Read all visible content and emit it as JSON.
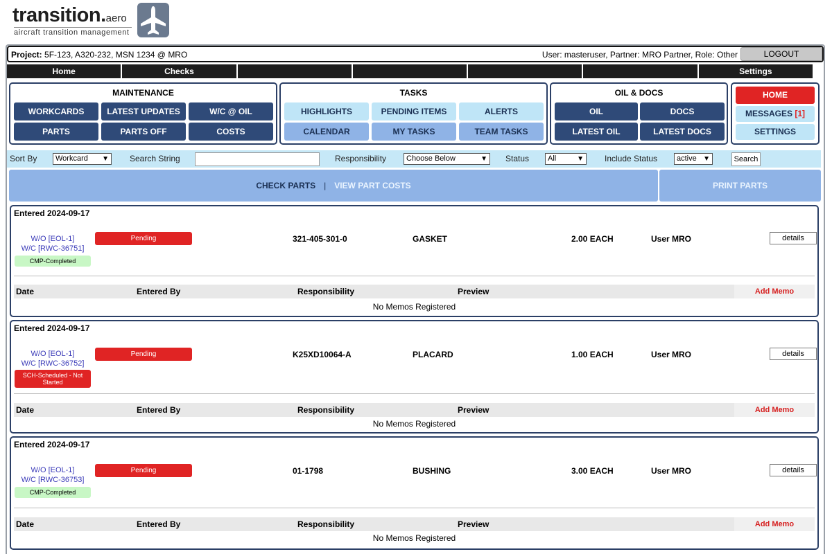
{
  "logo": {
    "word": "transition.",
    "suffix": "aero",
    "tagline": "aircraft transition management",
    "icon": "airplane-icon"
  },
  "infobar": {
    "project_label": "Project:",
    "project_value": "5F-123, A320-232, MSN 1234 @ MRO",
    "user_text": "User: masteruser, Partner: MRO Partner, Role: Other",
    "logout_label": "LOGOUT"
  },
  "nav": {
    "items": [
      "Home",
      "Checks",
      "",
      "",
      "",
      "",
      "Settings"
    ]
  },
  "maintenance": {
    "title": "MAINTENANCE",
    "buttons": [
      "WORKCARDS",
      "LATEST UPDATES",
      "W/C @ OIL",
      "PARTS",
      "PARTS OFF",
      "COSTS"
    ]
  },
  "tasks": {
    "title": "TASKS",
    "buttons": [
      "HIGHLIGHTS",
      "PENDING ITEMS",
      "ALERTS",
      "CALENDAR",
      "MY TASKS",
      "TEAM TASKS"
    ]
  },
  "oil_docs": {
    "title": "OIL & DOCS",
    "buttons": [
      "OIL",
      "DOCS",
      "LATEST OIL",
      "LATEST DOCS"
    ]
  },
  "side": {
    "home_label": "HOME",
    "messages_label": "MESSAGES",
    "messages_count": "[1]",
    "settings_label": "SETTINGS"
  },
  "filters": {
    "sort_by_label": "Sort By",
    "sort_by_value": "Workcard",
    "search_label": "Search String",
    "search_value": "",
    "responsibility_label": "Responsibility",
    "responsibility_value": "Choose Below",
    "status_label": "Status",
    "status_value": "All",
    "include_status_label": "Include Status",
    "include_status_value": "active",
    "search_button": "Search"
  },
  "tabs": {
    "active": "CHECK PARTS",
    "separator": "|",
    "link": "VIEW PART COSTS",
    "print": "PRINT PARTS"
  },
  "memo_columns": {
    "date": "Date",
    "entered_by": "Entered By",
    "responsibility": "Responsibility",
    "preview": "Preview",
    "add_memo": "Add Memo",
    "empty": "No Memos Registered"
  },
  "parts": [
    {
      "entered": "Entered 2024-09-17",
      "wo": "W/O [EOL-1]",
      "wc": "W/C [RWC-36751]",
      "wc_status": "CMP-Completed",
      "wc_status_color": "#c8f7c5",
      "state": "Pending",
      "part_number": "321-405-301-0",
      "description": "GASKET",
      "quantity": "2.00 EACH",
      "user": "User MRO",
      "details_label": "details"
    },
    {
      "entered": "Entered 2024-09-17",
      "wo": "W/O [EOL-1]",
      "wc": "W/C [RWC-36752]",
      "wc_status": "SCH-Scheduled - Not Started",
      "wc_status_color": "#e02424",
      "state": "Pending",
      "part_number": "K25XD10064-A",
      "description": "PLACARD",
      "quantity": "1.00 EACH",
      "user": "User MRO",
      "details_label": "details"
    },
    {
      "entered": "Entered 2024-09-17",
      "wo": "W/O [EOL-1]",
      "wc": "W/C [RWC-36753]",
      "wc_status": "CMP-Completed",
      "wc_status_color": "#c8f7c5",
      "state": "Pending",
      "part_number": "01-1798",
      "description": "BUSHING",
      "quantity": "3.00 EACH",
      "user": "User MRO",
      "details_label": "details"
    }
  ]
}
